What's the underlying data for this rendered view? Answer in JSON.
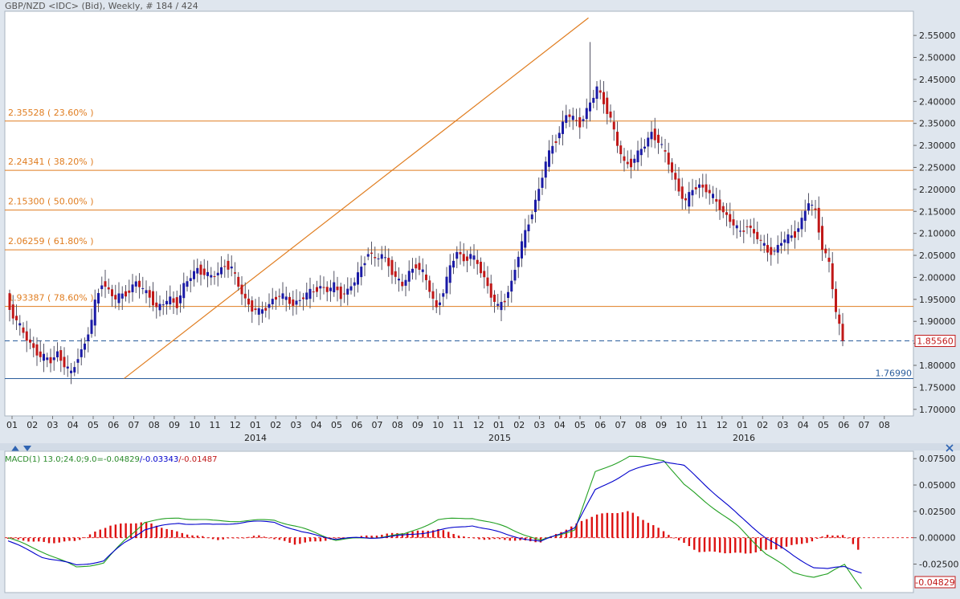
{
  "header": {
    "title": "GBP/NZD <IDC> (Bid), Weekly, # 184 / 424"
  },
  "colors": {
    "up": "#1a1aa6",
    "down": "#c01818",
    "wick": "#555566",
    "fib": "#e07d20",
    "support": "#2a5d9c",
    "macd": "#0000cc",
    "signal": "#22a022",
    "hist": "#dd1111",
    "bg": "#ffffff",
    "frame": "#dfe6ee"
  },
  "icons": {
    "collapse_up": "triangle-up-icon",
    "collapse_down": "triangle-down-icon",
    "close": "close-icon"
  },
  "chart_data": [
    {
      "type": "candlestick",
      "title": "GBP/NZD <IDC> (Bid), Weekly, # 184 / 424",
      "ylim": [
        1.685,
        2.605
      ],
      "y_ticks": [
        "2.55000",
        "2.50000",
        "2.45000",
        "2.40000",
        "2.35000",
        "2.30000",
        "2.25000",
        "2.20000",
        "2.15000",
        "2.10000",
        "2.05000",
        "2.00000",
        "1.95000",
        "1.90000",
        "1.85000",
        "1.80000",
        "1.75000",
        "1.70000"
      ],
      "x_ticks": [
        "01",
        "02",
        "03",
        "04",
        "05",
        "06",
        "07",
        "08",
        "09",
        "10",
        "11",
        "12",
        "01",
        "02",
        "03",
        "04",
        "05",
        "06",
        "07",
        "08",
        "09",
        "10",
        "11",
        "12",
        "01",
        "02",
        "03",
        "04",
        "05",
        "06",
        "07",
        "08",
        "09",
        "10",
        "11",
        "12",
        "01",
        "02",
        "03",
        "04",
        "05",
        "06",
        "07",
        "08"
      ],
      "year_labels": [
        "2014",
        "2015",
        "2016"
      ],
      "fib_levels": [
        {
          "value": 2.35528,
          "label": "2.35528 ( 23.60% )"
        },
        {
          "value": 2.24341,
          "label": "2.24341 ( 38.20% )"
        },
        {
          "value": 2.153,
          "label": "2.15300 ( 50.00% )"
        },
        {
          "value": 2.06259,
          "label": "2.06259 ( 61.80% )"
        },
        {
          "value": 1.93387,
          "label": "1.93387 ( 78.60% )"
        }
      ],
      "support_level": {
        "value": 1.7699,
        "label": "1.76990"
      },
      "last_price": {
        "value": 1.8556,
        "label": "1.85560"
      },
      "trendline": {
        "from": {
          "week": 34,
          "price": 1.77
        },
        "to": {
          "week": 170,
          "price": 2.59
        }
      },
      "anchors": [
        [
          0,
          1.96
        ],
        [
          1,
          1.93
        ],
        [
          3,
          1.9
        ],
        [
          6,
          1.86
        ],
        [
          8,
          1.84
        ],
        [
          10,
          1.82
        ],
        [
          13,
          1.81
        ],
        [
          15,
          1.83
        ],
        [
          17,
          1.8
        ],
        [
          19,
          1.78
        ],
        [
          21,
          1.82
        ],
        [
          23,
          1.85
        ],
        [
          25,
          1.9
        ],
        [
          26,
          1.94
        ],
        [
          28,
          1.99
        ],
        [
          30,
          1.97
        ],
        [
          32,
          1.95
        ],
        [
          34,
          1.96
        ],
        [
          36,
          1.97
        ],
        [
          38,
          1.99
        ],
        [
          40,
          1.97
        ],
        [
          42,
          1.96
        ],
        [
          44,
          1.93
        ],
        [
          46,
          1.94
        ],
        [
          48,
          1.95
        ],
        [
          50,
          1.94
        ],
        [
          52,
          1.98
        ],
        [
          54,
          2.0
        ],
        [
          56,
          2.02
        ],
        [
          58,
          2.01
        ],
        [
          60,
          2.0
        ],
        [
          62,
          2.01
        ],
        [
          64,
          2.03
        ],
        [
          66,
          2.02
        ],
        [
          68,
          1.98
        ],
        [
          70,
          1.95
        ],
        [
          72,
          1.93
        ],
        [
          74,
          1.92
        ],
        [
          76,
          1.93
        ],
        [
          78,
          1.95
        ],
        [
          80,
          1.96
        ],
        [
          82,
          1.95
        ],
        [
          84,
          1.94
        ],
        [
          86,
          1.95
        ],
        [
          88,
          1.96
        ],
        [
          90,
          1.97
        ],
        [
          92,
          1.98
        ],
        [
          94,
          1.97
        ],
        [
          96,
          1.98
        ],
        [
          98,
          1.96
        ],
        [
          100,
          1.97
        ],
        [
          102,
          1.99
        ],
        [
          104,
          2.02
        ],
        [
          106,
          2.06
        ],
        [
          108,
          2.04
        ],
        [
          110,
          2.05
        ],
        [
          112,
          2.03
        ],
        [
          114,
          2.0
        ],
        [
          116,
          1.98
        ],
        [
          118,
          2.01
        ],
        [
          120,
          2.03
        ],
        [
          122,
          2.01
        ],
        [
          124,
          1.97
        ],
        [
          126,
          1.93
        ],
        [
          128,
          1.97
        ],
        [
          130,
          2.02
        ],
        [
          132,
          2.06
        ],
        [
          134,
          2.04
        ],
        [
          136,
          2.05
        ],
        [
          138,
          2.03
        ],
        [
          140,
          2.0
        ],
        [
          142,
          1.96
        ],
        [
          144,
          1.93
        ],
        [
          146,
          1.95
        ],
        [
          148,
          1.99
        ],
        [
          150,
          2.05
        ],
        [
          152,
          2.1
        ],
        [
          154,
          2.15
        ],
        [
          156,
          2.2
        ],
        [
          158,
          2.26
        ],
        [
          160,
          2.3
        ],
        [
          162,
          2.33
        ],
        [
          164,
          2.37
        ],
        [
          166,
          2.36
        ],
        [
          168,
          2.35
        ],
        [
          170,
          2.38
        ],
        [
          172,
          2.41
        ],
        [
          173,
          2.43
        ],
        [
          175,
          2.4
        ],
        [
          177,
          2.36
        ],
        [
          179,
          2.3
        ],
        [
          181,
          2.26
        ],
        [
          183,
          2.26
        ],
        [
          185,
          2.28
        ],
        [
          187,
          2.3
        ],
        [
          189,
          2.33
        ],
        [
          191,
          2.31
        ],
        [
          193,
          2.28
        ],
        [
          195,
          2.24
        ],
        [
          197,
          2.2
        ],
        [
          199,
          2.17
        ],
        [
          201,
          2.2
        ],
        [
          203,
          2.21
        ],
        [
          205,
          2.2
        ],
        [
          207,
          2.18
        ],
        [
          209,
          2.16
        ],
        [
          211,
          2.14
        ],
        [
          213,
          2.12
        ],
        [
          215,
          2.1
        ],
        [
          217,
          2.12
        ],
        [
          219,
          2.1
        ],
        [
          221,
          2.08
        ],
        [
          223,
          2.06
        ],
        [
          225,
          2.06
        ],
        [
          227,
          2.08
        ],
        [
          229,
          2.09
        ],
        [
          231,
          2.1
        ],
        [
          233,
          2.13
        ],
        [
          235,
          2.17
        ],
        [
          237,
          2.15
        ],
        [
          239,
          2.07
        ],
        [
          241,
          2.03
        ],
        [
          243,
          1.92
        ],
        [
          245,
          1.86
        ]
      ]
    },
    {
      "type": "line",
      "title": "MACD(1) 13.0;24.0;9.0=",
      "legend_values": [
        "-0.04829",
        "-0.03343",
        "-0.01487"
      ],
      "legend_seps": [
        "/",
        "/"
      ],
      "ylim": [
        -0.052,
        0.082
      ],
      "y_ticks": [
        "0.07500",
        "0.05000",
        "0.02500",
        "0.00000",
        "-0.02500"
      ],
      "last_value_label": "-0.04829",
      "macd_anchors": [
        [
          0,
          -0.003
        ],
        [
          10,
          -0.018
        ],
        [
          20,
          -0.026
        ],
        [
          28,
          -0.022
        ],
        [
          34,
          -0.005
        ],
        [
          40,
          0.008
        ],
        [
          50,
          0.014
        ],
        [
          60,
          0.012
        ],
        [
          70,
          0.015
        ],
        [
          78,
          0.015
        ],
        [
          86,
          0.005
        ],
        [
          96,
          -0.001
        ],
        [
          106,
          0.0
        ],
        [
          116,
          0.002
        ],
        [
          126,
          0.007
        ],
        [
          136,
          0.012
        ],
        [
          146,
          0.003
        ],
        [
          156,
          -0.004
        ],
        [
          166,
          0.01
        ],
        [
          172,
          0.045
        ],
        [
          182,
          0.063
        ],
        [
          192,
          0.073
        ],
        [
          198,
          0.068
        ],
        [
          206,
          0.045
        ],
        [
          214,
          0.021
        ],
        [
          222,
          0.0
        ],
        [
          230,
          -0.017
        ],
        [
          236,
          -0.028
        ],
        [
          240,
          -0.03
        ],
        [
          245,
          -0.027
        ],
        [
          250,
          -0.033
        ]
      ],
      "signal_anchors": [
        [
          0,
          0.0
        ],
        [
          10,
          -0.013
        ],
        [
          20,
          -0.028
        ],
        [
          28,
          -0.024
        ],
        [
          34,
          -0.003
        ],
        [
          40,
          0.015
        ],
        [
          50,
          0.019
        ],
        [
          60,
          0.016
        ],
        [
          70,
          0.016
        ],
        [
          78,
          0.017
        ],
        [
          86,
          0.009
        ],
        [
          96,
          -0.002
        ],
        [
          106,
          0.0
        ],
        [
          116,
          0.003
        ],
        [
          126,
          0.017
        ],
        [
          136,
          0.019
        ],
        [
          146,
          0.01
        ],
        [
          156,
          -0.003
        ],
        [
          166,
          0.008
        ],
        [
          172,
          0.062
        ],
        [
          182,
          0.077
        ],
        [
          192,
          0.074
        ],
        [
          198,
          0.05
        ],
        [
          206,
          0.03
        ],
        [
          214,
          0.01
        ],
        [
          222,
          -0.015
        ],
        [
          230,
          -0.033
        ],
        [
          236,
          -0.037
        ],
        [
          240,
          -0.035
        ],
        [
          245,
          -0.025
        ],
        [
          250,
          -0.048
        ]
      ],
      "hist_anchors": [
        [
          0,
          -0.001
        ],
        [
          12,
          -0.005
        ],
        [
          20,
          -0.003
        ],
        [
          30,
          0.012
        ],
        [
          40,
          0.015
        ],
        [
          50,
          0.005
        ],
        [
          62,
          -0.002
        ],
        [
          74,
          0.002
        ],
        [
          84,
          -0.006
        ],
        [
          94,
          -0.002
        ],
        [
          106,
          0.002
        ],
        [
          126,
          0.008
        ],
        [
          136,
          -0.001
        ],
        [
          146,
          -0.002
        ],
        [
          156,
          -0.004
        ],
        [
          172,
          0.022
        ],
        [
          182,
          0.025
        ],
        [
          192,
          0.006
        ],
        [
          202,
          -0.013
        ],
        [
          216,
          -0.015
        ],
        [
          226,
          -0.01
        ],
        [
          236,
          -0.003
        ],
        [
          240,
          0.003
        ],
        [
          245,
          0.002
        ],
        [
          250,
          -0.014
        ]
      ]
    }
  ]
}
